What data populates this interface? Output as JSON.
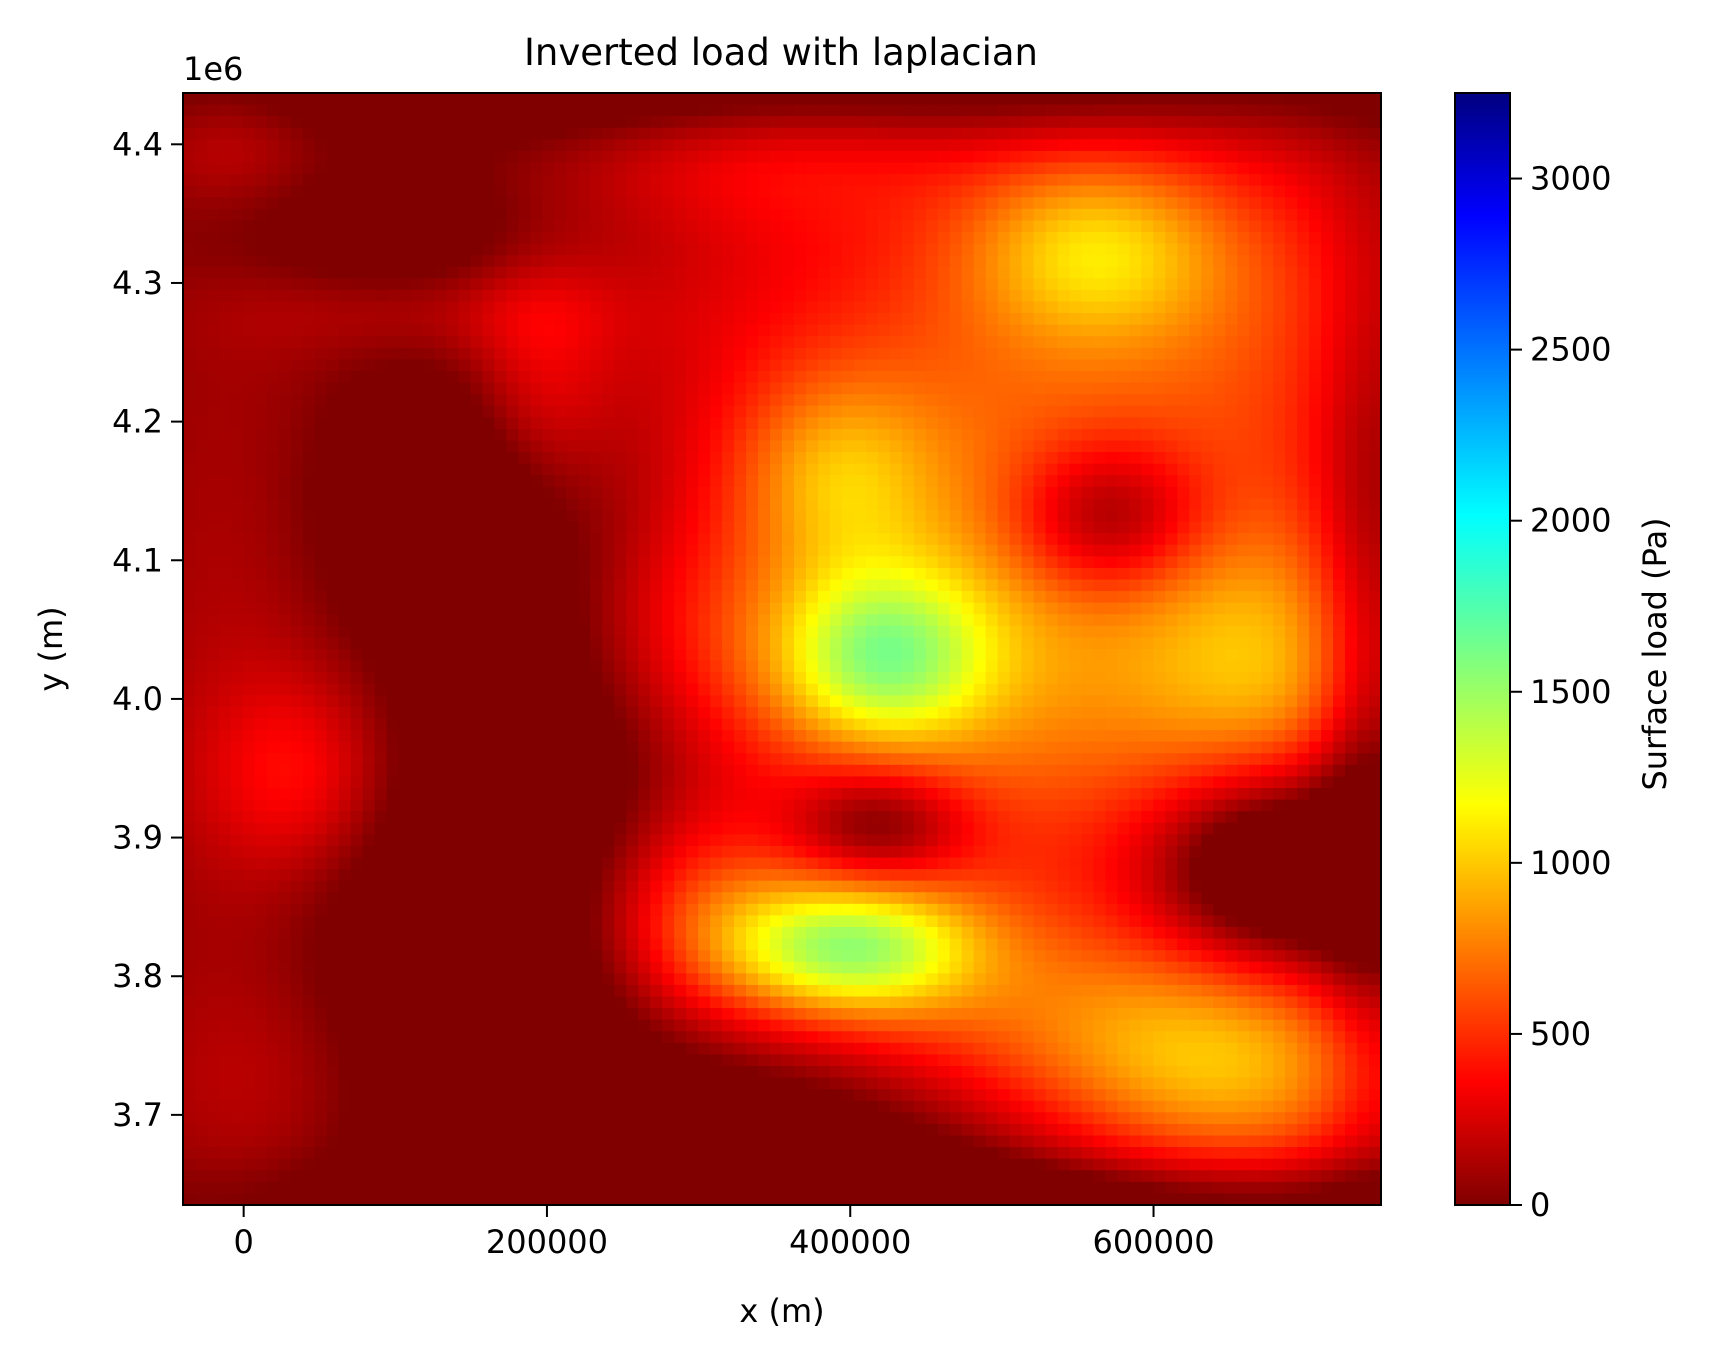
{
  "chart_data": {
    "type": "heatmap",
    "title": "Inverted load with laplacian",
    "xlabel": "x (m)",
    "ylabel": "y (m)",
    "y_offset_label": "1e6",
    "xlim": [
      -40000,
      750000
    ],
    "ylim": [
      3635000,
      4437000
    ],
    "x_ticks": [
      0,
      200000,
      400000,
      600000
    ],
    "x_tick_labels": [
      "0",
      "200000",
      "400000",
      "600000"
    ],
    "y_ticks": [
      3700000,
      3800000,
      3900000,
      4000000,
      4100000,
      4200000,
      4300000,
      4400000
    ],
    "y_tick_labels": [
      "3.7",
      "3.8",
      "3.9",
      "4.0",
      "4.1",
      "4.2",
      "4.3",
      "4.4"
    ],
    "colormap": "jet_r",
    "colorbar": {
      "label": "Surface load (Pa)",
      "range": [
        0,
        3250
      ],
      "ticks": [
        0,
        500,
        1000,
        1500,
        2000,
        2500,
        3000
      ],
      "tick_labels": [
        "0",
        "500",
        "1000",
        "1500",
        "2000",
        "2500",
        "3000"
      ]
    },
    "grid_shape": [
      96,
      100
    ],
    "field": {
      "base": 0,
      "blobs": [
        {
          "x": 560000,
          "y": 4325000,
          "sx": 60000,
          "sy": 48000,
          "amp": 650
        },
        {
          "x": 420000,
          "y": 4030000,
          "sx": 50000,
          "sy": 45000,
          "amp": 900
        },
        {
          "x": 400000,
          "y": 3820000,
          "sx": 60000,
          "sy": 35000,
          "amp": 1150
        },
        {
          "x": 480000,
          "y": 3985000,
          "sx": 150000,
          "sy": 130000,
          "amp": 420
        },
        {
          "x": 600000,
          "y": 4045000,
          "sx": 160000,
          "sy": 120000,
          "amp": 380
        },
        {
          "x": 480000,
          "y": 4240000,
          "sx": 160000,
          "sy": 140000,
          "amp": 500
        },
        {
          "x": 680000,
          "y": 4020000,
          "sx": 60000,
          "sy": 70000,
          "amp": 450
        },
        {
          "x": 660000,
          "y": 3730000,
          "sx": 90000,
          "sy": 60000,
          "amp": 800
        },
        {
          "x": 530000,
          "y": 3770000,
          "sx": 110000,
          "sy": 60000,
          "amp": 430
        },
        {
          "x": 300000,
          "y": 3845000,
          "sx": 55000,
          "sy": 55000,
          "amp": 500
        },
        {
          "x": 390000,
          "y": 4160000,
          "sx": 45000,
          "sy": 50000,
          "amp": 450
        },
        {
          "x": 195000,
          "y": 4220000,
          "sx": 35000,
          "sy": 70000,
          "amp": 330
        },
        {
          "x": 120000,
          "y": 4280000,
          "sx": 90000,
          "sy": 25000,
          "amp": 200
        },
        {
          "x": 40000,
          "y": 3945000,
          "sx": 45000,
          "sy": 50000,
          "amp": 350
        },
        {
          "x": 0,
          "y": 4000000,
          "sx": 60000,
          "sy": 250000,
          "amp": 180
        },
        {
          "x": 30000,
          "y": 3720000,
          "sx": 70000,
          "sy": 60000,
          "amp": 160
        },
        {
          "x": -10000,
          "y": 4400000,
          "sx": 40000,
          "sy": 30000,
          "amp": 170
        },
        {
          "x": 340000,
          "y": 4390000,
          "sx": 90000,
          "sy": 40000,
          "amp": 220
        },
        {
          "x": 290000,
          "y": 4040000,
          "sx": 60000,
          "sy": 60000,
          "amp": 250
        },
        {
          "x": 680000,
          "y": 4300000,
          "sx": 80000,
          "sy": 90000,
          "amp": 300
        },
        {
          "x": 150000,
          "y": 4140000,
          "sx": 70000,
          "sy": 70000,
          "amp": -400
        },
        {
          "x": 160000,
          "y": 3800000,
          "sx": 90000,
          "sy": 130000,
          "amp": -350
        },
        {
          "x": 220000,
          "y": 3980000,
          "sx": 70000,
          "sy": 80000,
          "amp": -250
        },
        {
          "x": 680000,
          "y": 3880000,
          "sx": 55000,
          "sy": 50000,
          "amp": -750
        },
        {
          "x": 570000,
          "y": 4130000,
          "sx": 45000,
          "sy": 40000,
          "amp": -650
        },
        {
          "x": 420000,
          "y": 3910000,
          "sx": 40000,
          "sy": 30000,
          "amp": -500
        },
        {
          "x": 100000,
          "y": 4330000,
          "sx": 80000,
          "sy": 40000,
          "amp": -200
        },
        {
          "x": 330000,
          "y": 3660000,
          "sx": 120000,
          "sy": 50000,
          "amp": -400
        },
        {
          "x": 740000,
          "y": 4000000,
          "sx": 25000,
          "sy": 200000,
          "amp": -350
        },
        {
          "x": 400000,
          "y": 4437000,
          "sx": 300000,
          "sy": 25000,
          "amp": -300
        },
        {
          "x": 500000,
          "y": 3640000,
          "sx": 300000,
          "sy": 20000,
          "amp": -300
        }
      ]
    }
  }
}
